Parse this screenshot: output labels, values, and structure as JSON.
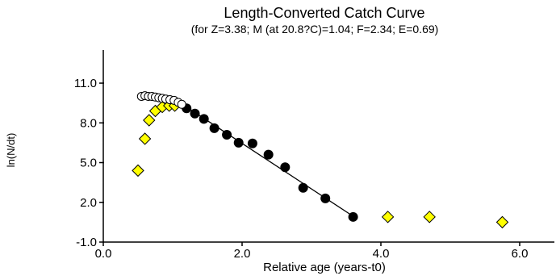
{
  "chart_data": {
    "type": "scatter",
    "title": "Length-Converted Catch Curve",
    "subtitle": "(for Z=3.38; M (at 20.8?C)=1.04; F=2.34; E=0.69)",
    "xlabel": "Relative age (years-t0)",
    "ylabel": "ln(N/dt)",
    "xlim": [
      0,
      6.5
    ],
    "ylim": [
      -1.0,
      13.5
    ],
    "x_ticks": [
      0.0,
      2.0,
      4.0,
      6.0
    ],
    "x_tick_labels": [
      "0.0",
      "2.0",
      "4.0",
      "6.0"
    ],
    "y_ticks": [
      -1.0,
      2.0,
      5.0,
      8.0,
      11.0
    ],
    "y_tick_labels": [
      "-1.0",
      "2.0",
      "5.0",
      "8.0",
      "11.0"
    ],
    "grid": false,
    "colors": {
      "selected": "#000000",
      "excluded": "#ffff00",
      "ascending": "#ffffff",
      "outline": "#000000"
    },
    "series": [
      {
        "style": "black-filled-circles",
        "points": [
          [
            1.2,
            9.1
          ],
          [
            1.32,
            8.7
          ],
          [
            1.45,
            8.3
          ],
          [
            1.6,
            7.6
          ],
          [
            1.78,
            7.1
          ],
          [
            1.95,
            6.5
          ],
          [
            2.15,
            6.45
          ],
          [
            2.38,
            5.6
          ],
          [
            2.62,
            4.65
          ],
          [
            2.88,
            3.1
          ],
          [
            3.2,
            2.3
          ],
          [
            3.6,
            0.9
          ]
        ]
      },
      {
        "style": "yellow-diamonds",
        "points": [
          [
            0.5,
            4.4
          ],
          [
            0.6,
            6.8
          ],
          [
            0.66,
            8.2
          ],
          [
            0.75,
            8.9
          ],
          [
            0.85,
            9.2
          ],
          [
            0.95,
            9.3
          ],
          [
            1.03,
            9.3
          ],
          [
            4.1,
            0.9
          ],
          [
            4.7,
            0.9
          ],
          [
            5.75,
            0.5
          ]
        ]
      },
      {
        "style": "open-circles",
        "points": [
          [
            0.55,
            10.0
          ],
          [
            0.6,
            10.05
          ],
          [
            0.65,
            10.0
          ],
          [
            0.7,
            10.0
          ],
          [
            0.75,
            9.95
          ],
          [
            0.8,
            9.9
          ],
          [
            0.85,
            9.85
          ],
          [
            0.9,
            9.8
          ],
          [
            0.96,
            9.75
          ],
          [
            1.02,
            9.7
          ],
          [
            1.08,
            9.55
          ],
          [
            1.13,
            9.4
          ]
        ]
      }
    ],
    "regression_line": {
      "x": [
        1.2,
        3.6
      ],
      "y": [
        9.2,
        0.95
      ]
    }
  }
}
